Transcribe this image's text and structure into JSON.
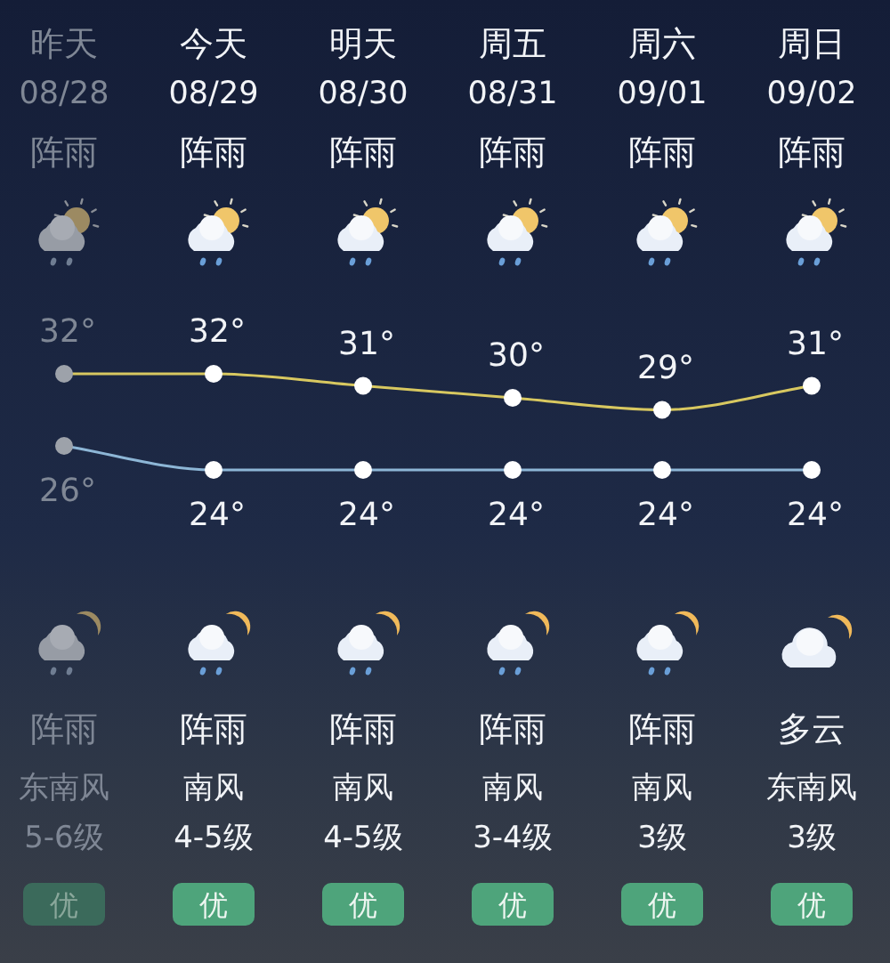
{
  "chart_data": {
    "type": "line",
    "categories": [
      "昨天",
      "今天",
      "明天",
      "周五",
      "周六",
      "周日"
    ],
    "series": [
      {
        "color": "#d8c860",
        "colors": [
          "#9da2aa",
          "#ffffff",
          "#ffffff",
          "#ffffff",
          "#ffffff",
          "#ffffff"
        ],
        "values": [
          32,
          32,
          31,
          30,
          29,
          31
        ],
        "value_labels": [
          "32°",
          "32°",
          "31°",
          "30°",
          "29°",
          "31°"
        ]
      },
      {
        "color": "#8db6d6",
        "colors": [
          "#9da2aa",
          "#ffffff",
          "#ffffff",
          "#ffffff",
          "#ffffff",
          "#ffffff"
        ],
        "values": [
          26,
          24,
          24,
          24,
          24,
          24
        ],
        "value_labels": [
          "26°",
          "24°",
          "24°",
          "24°",
          "24°",
          "24°"
        ]
      }
    ],
    "marker": "circle",
    "annotations": [
      "08/28",
      "08/29",
      "08/30",
      "08/31",
      "09/01",
      "09/02",
      "阵雨",
      "阵雨",
      "阵雨",
      "阵雨",
      "阵雨",
      "阵雨",
      "阵雨",
      "阵雨",
      "阵雨",
      "阵雨",
      "阵雨",
      "多云",
      "东南风",
      "南风",
      "南风",
      "南风",
      "南风",
      "东南风",
      "5-6级",
      "4-5级",
      "4-5级",
      "3-4级",
      "3级",
      "3级",
      "优",
      "优",
      "优",
      "优",
      "优",
      "优"
    ]
  }
}
